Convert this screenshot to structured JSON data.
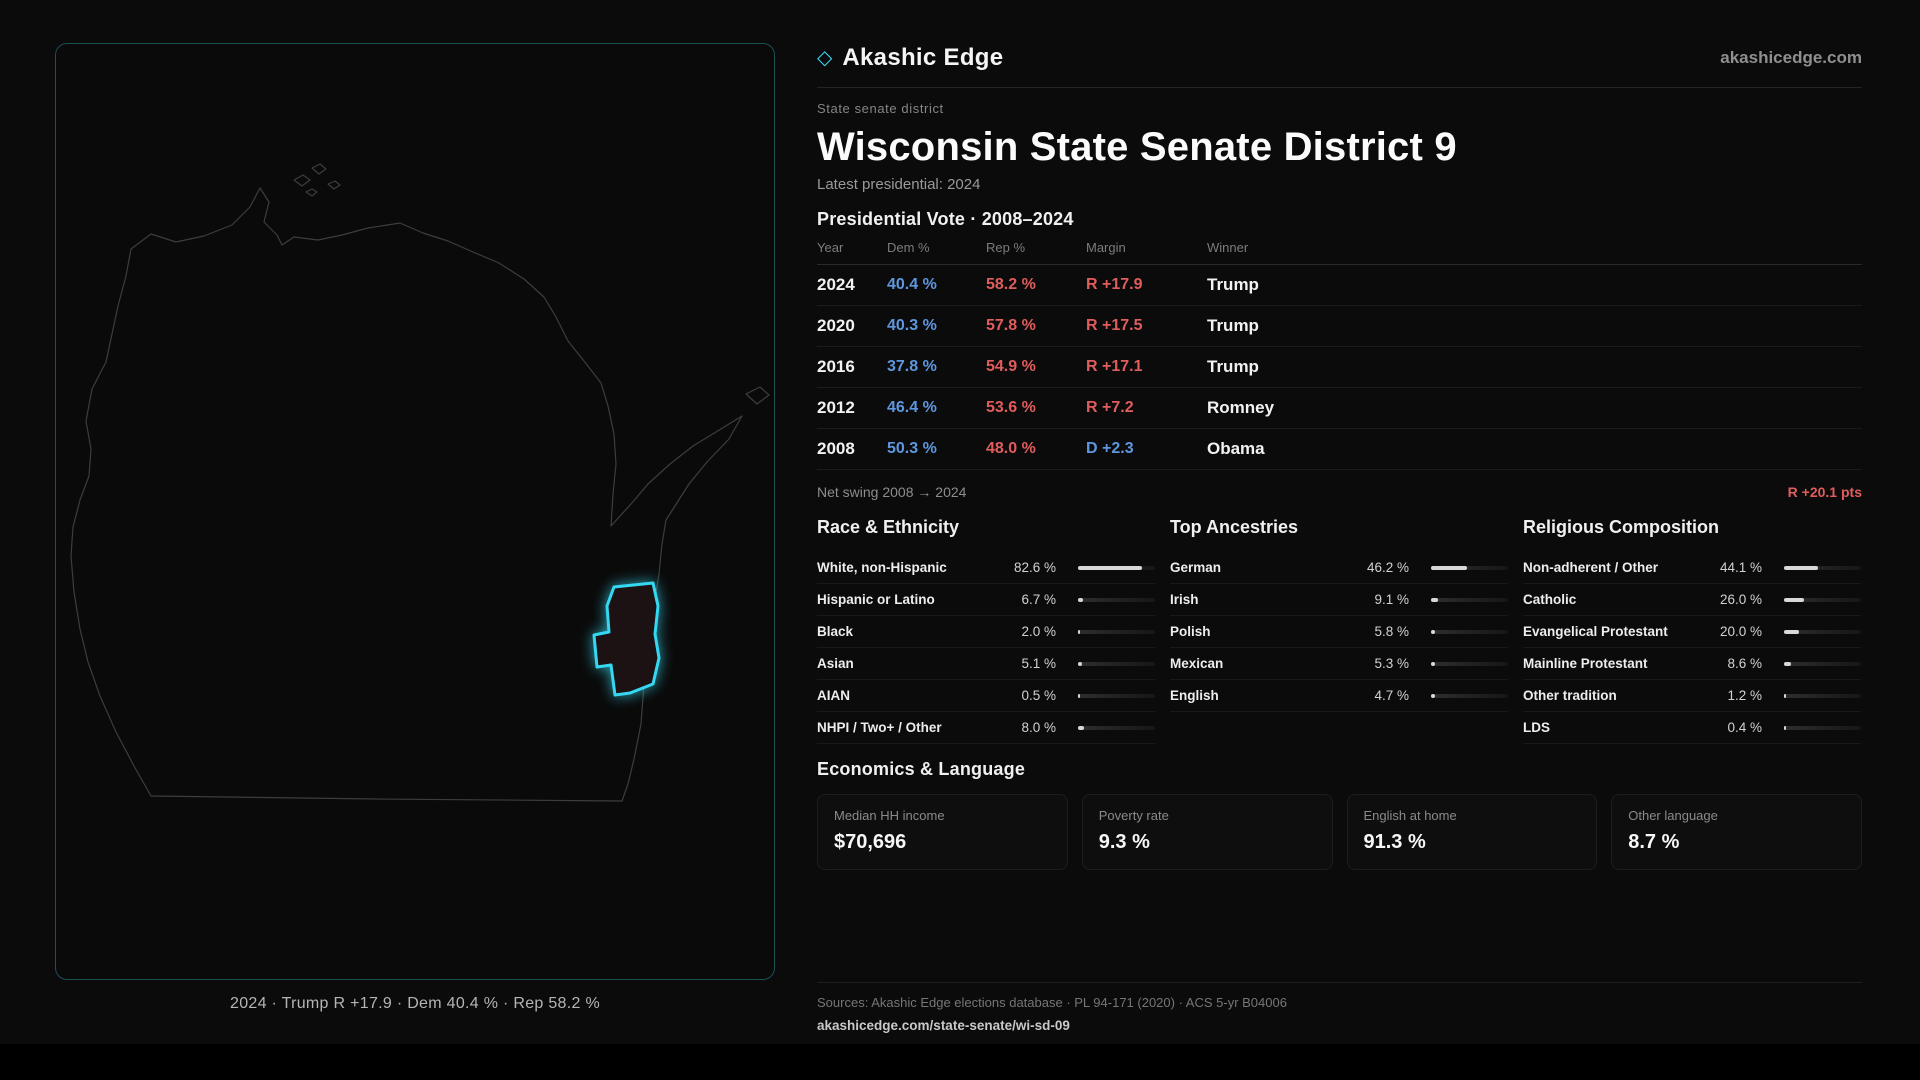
{
  "brand": {
    "icon_glyph": "◇",
    "name": "Akashic Edge",
    "domain": "akashicedge.com"
  },
  "page": {
    "kicker": "State senate district",
    "title": "Wisconsin State Senate District 9",
    "latest": "Latest presidential: 2024"
  },
  "map": {
    "caption": "2024 · Trump R +17.9 · Dem 40.4 % · Rep 58.2 %"
  },
  "vote_table": {
    "title": "Presidential Vote · 2008–2024",
    "columns": [
      "Year",
      "Dem %",
      "Rep %",
      "Margin",
      "Winner"
    ],
    "rows": [
      {
        "year": "2024",
        "dem": "40.4 %",
        "rep": "58.2 %",
        "margin": "R +17.9",
        "margin_party": "R",
        "winner": "Trump"
      },
      {
        "year": "2020",
        "dem": "40.3 %",
        "rep": "57.8 %",
        "margin": "R +17.5",
        "margin_party": "R",
        "winner": "Trump"
      },
      {
        "year": "2016",
        "dem": "37.8 %",
        "rep": "54.9 %",
        "margin": "R +17.1",
        "margin_party": "R",
        "winner": "Trump"
      },
      {
        "year": "2012",
        "dem": "46.4 %",
        "rep": "53.6 %",
        "margin": "R +7.2",
        "margin_party": "R",
        "winner": "Romney"
      },
      {
        "year": "2008",
        "dem": "50.3 %",
        "rep": "48.0 %",
        "margin": "D +2.3",
        "margin_party": "D",
        "winner": "Obama"
      }
    ]
  },
  "net_swing": {
    "label": "Net swing 2008 → 2024",
    "value": "R +20.1 pts"
  },
  "demographics": [
    {
      "title": "Race & Ethnicity",
      "rows": [
        {
          "label": "White, non-Hispanic",
          "value": "82.6 %",
          "pct": 82.6
        },
        {
          "label": "Hispanic or Latino",
          "value": "6.7 %",
          "pct": 6.7
        },
        {
          "label": "Black",
          "value": "2.0 %",
          "pct": 2.0
        },
        {
          "label": "Asian",
          "value": "5.1 %",
          "pct": 5.1
        },
        {
          "label": "AIAN",
          "value": "0.5 %",
          "pct": 0.5
        },
        {
          "label": "NHPI / Two+ / Other",
          "value": "8.0 %",
          "pct": 8.0
        }
      ]
    },
    {
      "title": "Top Ancestries",
      "rows": [
        {
          "label": "German",
          "value": "46.2 %",
          "pct": 46.2
        },
        {
          "label": "Irish",
          "value": "9.1 %",
          "pct": 9.1
        },
        {
          "label": "Polish",
          "value": "5.8 %",
          "pct": 5.8
        },
        {
          "label": "Mexican",
          "value": "5.3 %",
          "pct": 5.3
        },
        {
          "label": "English",
          "value": "4.7 %",
          "pct": 4.7
        }
      ]
    },
    {
      "title": "Religious Composition",
      "rows": [
        {
          "label": "Non-adherent / Other",
          "value": "44.1 %",
          "pct": 44.1
        },
        {
          "label": "Catholic",
          "value": "26.0 %",
          "pct": 26.0
        },
        {
          "label": "Evangelical Protestant",
          "value": "20.0 %",
          "pct": 20.0
        },
        {
          "label": "Mainline Protestant",
          "value": "8.6 %",
          "pct": 8.6
        },
        {
          "label": "Other tradition",
          "value": "1.2 %",
          "pct": 1.2
        },
        {
          "label": "LDS",
          "value": "0.4 %",
          "pct": 0.4
        }
      ]
    }
  ],
  "economics": {
    "title": "Economics & Language",
    "cards": [
      {
        "label": "Median HH income",
        "value": "$70,696"
      },
      {
        "label": "Poverty rate",
        "value": "9.3 %"
      },
      {
        "label": "English at home",
        "value": "91.3 %"
      },
      {
        "label": "Other language",
        "value": "8.7 %"
      }
    ]
  },
  "footer": {
    "sources": "Sources: Akashic Edge elections database · PL 94-171 (2020) · ACS 5-yr B04006",
    "link": "akashicedge.com/state-senate/wi-sd-09"
  },
  "colors": {
    "accent": "#35d8f0",
    "dem": "#5e97e0",
    "rep": "#e05d5d",
    "panel_border": "#1d4f58"
  }
}
